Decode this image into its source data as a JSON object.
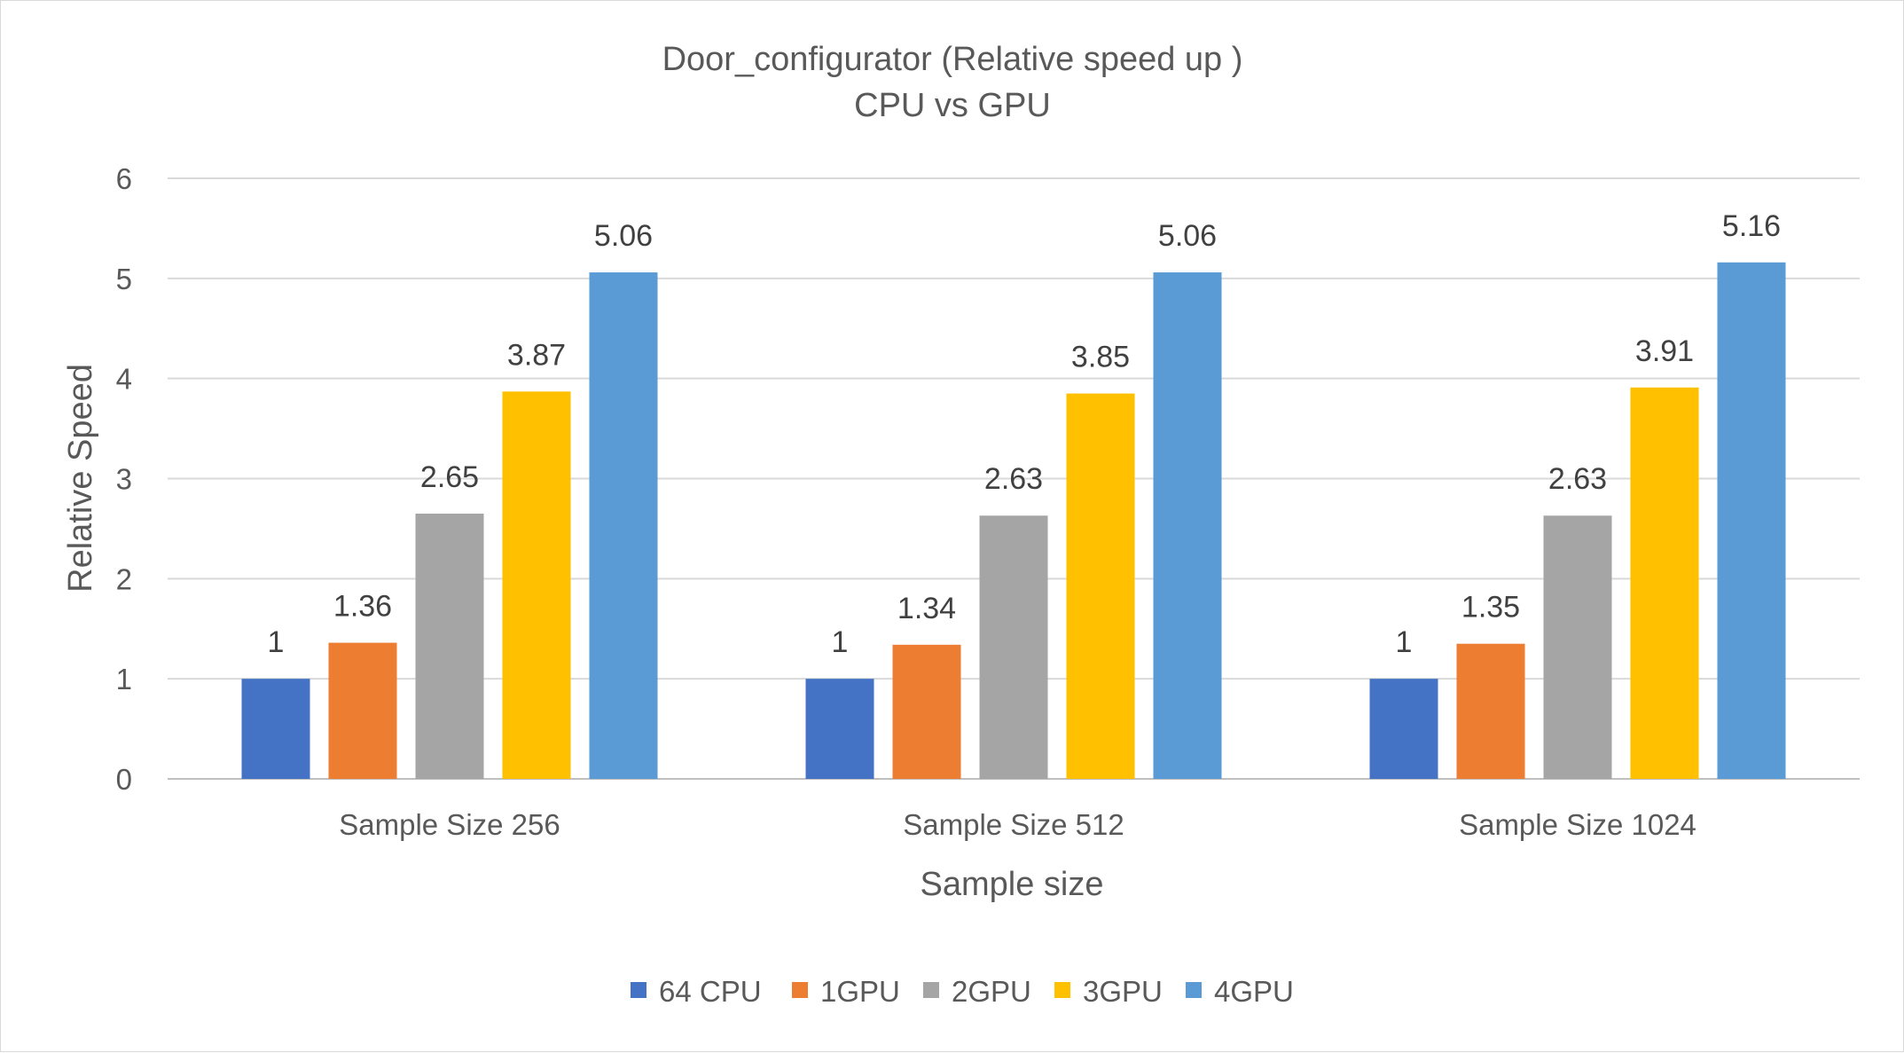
{
  "chart_data": {
    "type": "bar",
    "title": "Door_configurator (Relative speed up )",
    "subtitle": "CPU vs GPU",
    "xlabel": "Sample size",
    "ylabel": "Relative Speed",
    "ylim": [
      0,
      6
    ],
    "yticks": [
      "0",
      "1",
      "2",
      "3",
      "4",
      "5",
      "6"
    ],
    "grid": true,
    "legend_position": "bottom",
    "categories": [
      "Sample Size 256",
      "Sample Size 512",
      "Sample Size 1024"
    ],
    "series": [
      {
        "name": "64 CPU",
        "color": "#4472C4",
        "values": [
          1,
          1,
          1
        ],
        "labels": [
          "1",
          "1",
          "1"
        ]
      },
      {
        "name": "1GPU",
        "color": "#ED7D31",
        "values": [
          1.36,
          1.34,
          1.35
        ],
        "labels": [
          "1.36",
          "1.34",
          "1.35"
        ]
      },
      {
        "name": "2GPU",
        "color": "#A5A5A5",
        "values": [
          2.65,
          2.63,
          2.63
        ],
        "labels": [
          "2.65",
          "2.63",
          "2.63"
        ]
      },
      {
        "name": "3GPU",
        "color": "#FFC000",
        "values": [
          3.87,
          3.85,
          3.91
        ],
        "labels": [
          "3.87",
          "3.85",
          "3.91"
        ]
      },
      {
        "name": "4GPU",
        "color": "#5B9BD5",
        "values": [
          5.06,
          5.06,
          5.16
        ],
        "labels": [
          "5.06",
          "5.06",
          "5.16"
        ]
      }
    ]
  }
}
